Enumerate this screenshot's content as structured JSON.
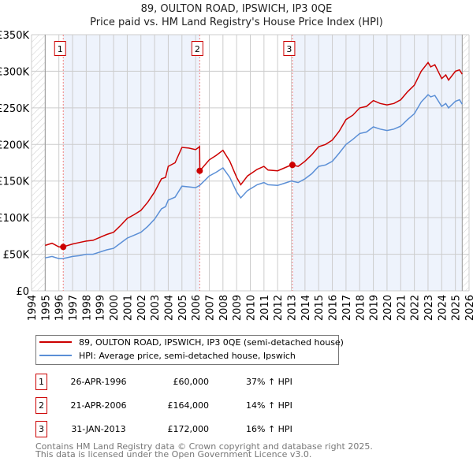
{
  "chart_data": {
    "type": "line",
    "title": "89, OULTON ROAD, IPSWICH, IP3 0QE",
    "subtitle": "Price paid vs. HM Land Registry's House Price Index (HPI)",
    "xlim": [
      1994,
      2026
    ],
    "ylim": [
      0,
      350000
    ],
    "x_ticks": [
      "1994",
      "1995",
      "1996",
      "1997",
      "1998",
      "1999",
      "2000",
      "2001",
      "2002",
      "2003",
      "2004",
      "2005",
      "2006",
      "2007",
      "2008",
      "2009",
      "2010",
      "2011",
      "2012",
      "2013",
      "2014",
      "2015",
      "2016",
      "2017",
      "2018",
      "2019",
      "2020",
      "2021",
      "2022",
      "2023",
      "2024",
      "2025",
      "2026"
    ],
    "y_ticks": [
      {
        "v": 0,
        "label": "£0"
      },
      {
        "v": 50000,
        "label": "£50K"
      },
      {
        "v": 100000,
        "label": "£100K"
      },
      {
        "v": 150000,
        "label": "£150K"
      },
      {
        "v": 200000,
        "label": "£200K"
      },
      {
        "v": 250000,
        "label": "£250K"
      },
      {
        "v": 300000,
        "label": "£300K"
      },
      {
        "v": 350000,
        "label": "£350K"
      }
    ],
    "grid": true,
    "data_start": 1995,
    "data_end": 2025.5,
    "series": [
      {
        "name": "89, OULTON ROAD, IPSWICH, IP3 0QE (semi-detached house)",
        "color": "#cc0000",
        "x": [
          1995,
          1995.5,
          1996,
          1996.3,
          1997,
          1997.5,
          1998,
          1998.5,
          1999,
          1999.5,
          2000,
          2000.5,
          2001,
          2001.5,
          2002,
          2002.5,
          2003,
          2003.5,
          2003.8,
          2004,
          2004.5,
          2005,
          2005.5,
          2006,
          2006.29,
          2006.31,
          2007,
          2007.5,
          2008,
          2008.5,
          2009,
          2009.3,
          2009.8,
          2010.5,
          2011,
          2011.3,
          2012,
          2012.5,
          2013,
          2013.5,
          2014,
          2014.5,
          2015,
          2015.5,
          2016,
          2016.5,
          2017,
          2017.5,
          2018,
          2018.5,
          2019,
          2019.5,
          2020,
          2020.5,
          2021,
          2021.5,
          2022,
          2022.5,
          2023,
          2023.2,
          2023.5,
          2024,
          2024.3,
          2024.5,
          2025,
          2025.3,
          2025.5
        ],
        "y": [
          62,
          65,
          60,
          60,
          64,
          66,
          68,
          69,
          73,
          77,
          80,
          89,
          99,
          104,
          110,
          121,
          135,
          153,
          155,
          170,
          175,
          196,
          195,
          193,
          197,
          164,
          179,
          185,
          192,
          177,
          155,
          145,
          157,
          166,
          170,
          165,
          164,
          168,
          172,
          170,
          177,
          186,
          197,
          200,
          206,
          218,
          234,
          240,
          250,
          252,
          260,
          256,
          254,
          256,
          261,
          272,
          281,
          300,
          312,
          306,
          309,
          290,
          295,
          288,
          300,
          302,
          296
        ]
      },
      {
        "name": "HPI: Average price, semi-detached house, Ipswich",
        "color": "#5b8fd6",
        "x": [
          1995,
          1995.5,
          1996,
          1996.3,
          1997,
          1997.5,
          1998,
          1998.5,
          1999,
          1999.5,
          2000,
          2000.5,
          2001,
          2001.5,
          2002,
          2002.5,
          2003,
          2003.5,
          2003.8,
          2004,
          2004.5,
          2005,
          2005.5,
          2006,
          2006.3,
          2007,
          2007.5,
          2008,
          2008.5,
          2009,
          2009.3,
          2009.8,
          2010.5,
          2011,
          2011.3,
          2012,
          2012.5,
          2013,
          2013.5,
          2014,
          2014.5,
          2015,
          2015.5,
          2016,
          2016.5,
          2017,
          2017.5,
          2018,
          2018.5,
          2019,
          2019.5,
          2020,
          2020.5,
          2021,
          2021.5,
          2022,
          2022.5,
          2023,
          2023.2,
          2023.5,
          2024,
          2024.3,
          2024.5,
          2025,
          2025.3,
          2025.5
        ],
        "y": [
          45,
          47,
          44,
          44,
          47,
          48,
          50,
          50,
          53,
          56,
          58,
          65,
          72,
          76,
          80,
          88,
          98,
          112,
          115,
          124,
          128,
          143,
          142,
          141,
          144,
          157,
          162,
          168,
          155,
          135,
          127,
          137,
          145,
          148,
          145,
          144,
          147,
          150,
          148,
          153,
          160,
          170,
          172,
          177,
          188,
          200,
          207,
          215,
          217,
          224,
          221,
          219,
          221,
          225,
          234,
          242,
          258,
          268,
          265,
          267,
          252,
          256,
          250,
          259,
          261,
          255
        ]
      }
    ],
    "y_unit": "thousands GBP",
    "sales": [
      {
        "n": "1",
        "x": 1996.32,
        "date": "26-APR-1996",
        "price": "£60,000",
        "value": 60,
        "hpi": "37% ↑ HPI"
      },
      {
        "n": "2",
        "x": 2006.3,
        "date": "21-APR-2006",
        "price": "£164,000",
        "value": 164,
        "hpi": "14% ↑ HPI"
      },
      {
        "n": "3",
        "x": 2013.08,
        "date": "31-JAN-2013",
        "price": "£172,000",
        "value": 172,
        "hpi": "16% ↑ HPI"
      }
    ]
  },
  "footer": {
    "line1": "Contains HM Land Registry data © Crown copyright and database right 2025.",
    "line2": "This data is licensed under the Open Government Licence v3.0."
  }
}
